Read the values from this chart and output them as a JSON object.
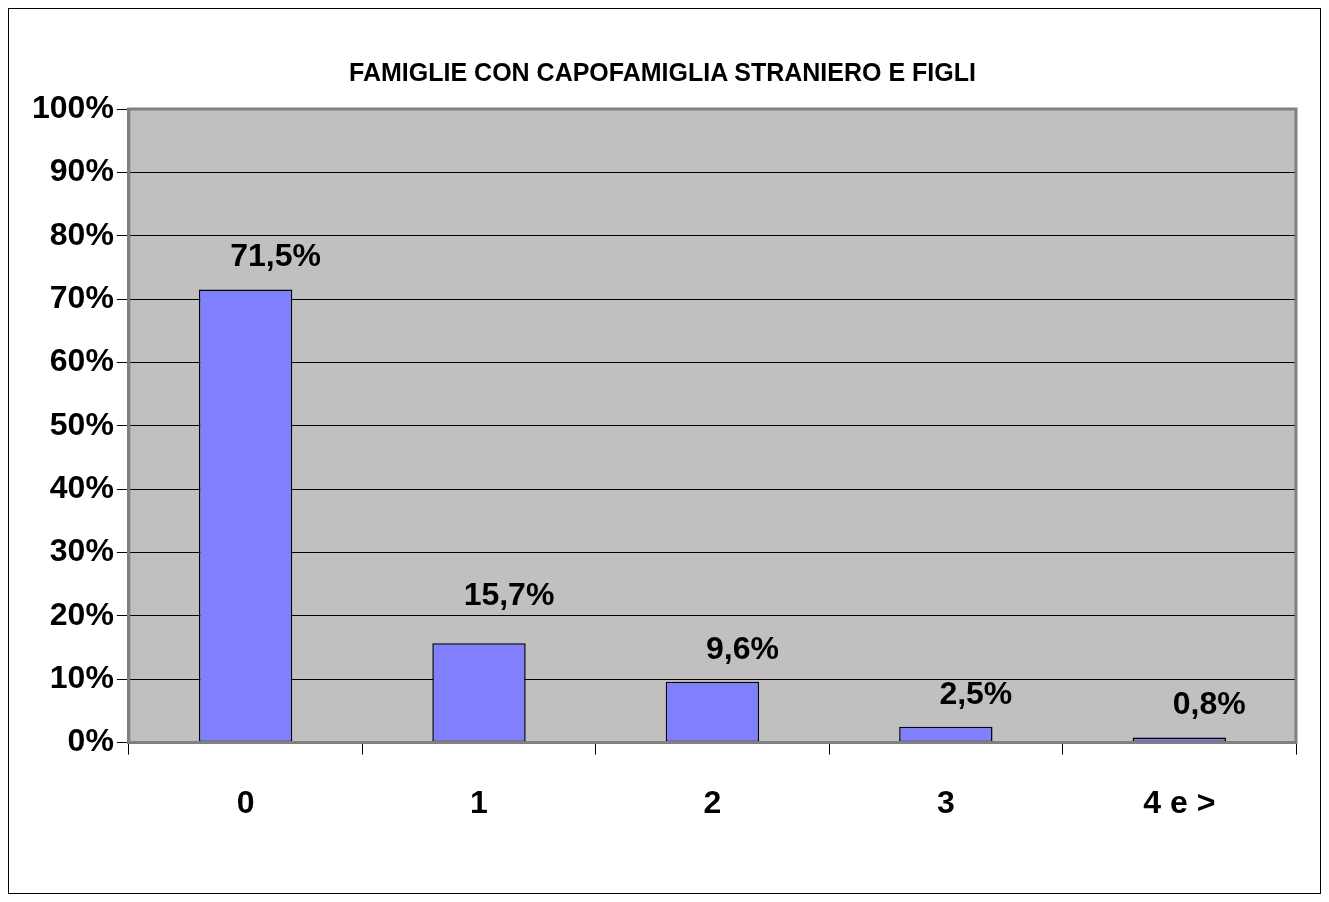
{
  "chart_data": {
    "type": "bar",
    "title": "FAMIGLIE CON CAPOFAMIGLIA STRANIERO E FIGLI",
    "categories": [
      "0",
      "1",
      "2",
      "3",
      "4 e >"
    ],
    "values": [
      71.5,
      15.7,
      9.6,
      2.5,
      0.8
    ],
    "value_labels": [
      "71,5%",
      "15,7%",
      "9,6%",
      "2,5%",
      "0,8%"
    ],
    "color": "#8080ff",
    "ylim": [
      0,
      100
    ],
    "yticks": [
      {
        "value": 0,
        "label": "0%"
      },
      {
        "value": 10,
        "label": "10%"
      },
      {
        "value": 20,
        "label": "20%"
      },
      {
        "value": 30,
        "label": "30%"
      },
      {
        "value": 40,
        "label": "40%"
      },
      {
        "value": 50,
        "label": "50%"
      },
      {
        "value": 60,
        "label": "60%"
      },
      {
        "value": 70,
        "label": "70%"
      },
      {
        "value": 80,
        "label": "80%"
      },
      {
        "value": 90,
        "label": "90%"
      },
      {
        "value": 100,
        "label": "100%"
      }
    ],
    "grid": "y"
  }
}
